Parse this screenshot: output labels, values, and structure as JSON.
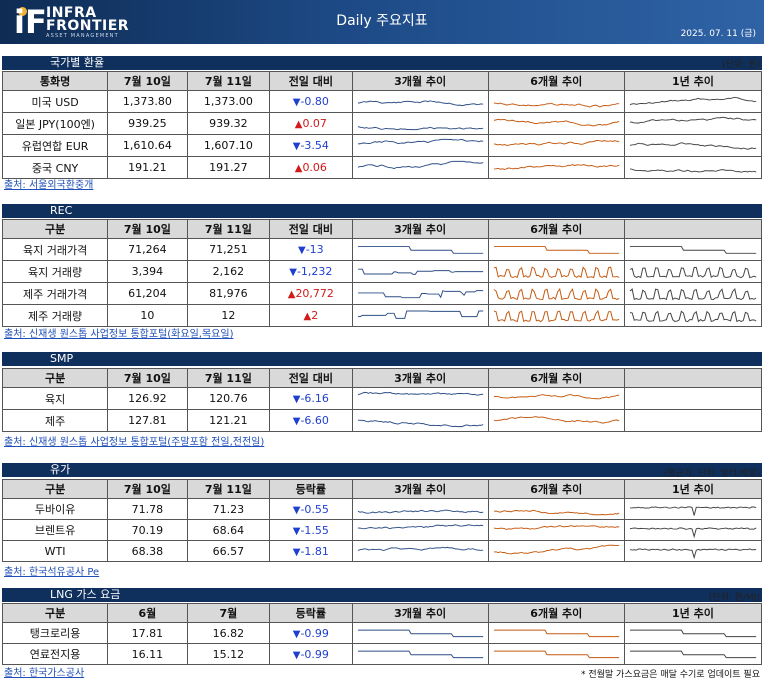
{
  "header": {
    "logo_i": "iF",
    "logo_line1": "INFRA",
    "logo_line2": "FRONTIER",
    "logo_line3": "ASSET MANAGEMENT",
    "title": "Daily 주요지표",
    "date": "2025. 07. 11 (금)"
  },
  "fx": {
    "title": "국가별 환율",
    "unit": "(단위: 원)",
    "headers": [
      "통화명",
      "7월 10일",
      "7월 11일",
      "전일 대비",
      "3개월 추이",
      "6개월 추이",
      "1년 추이"
    ],
    "rows": [
      {
        "name": "미국 USD",
        "prev": "1,373.80",
        "curr": "1,373.00",
        "dir": "down",
        "change": "-0.80"
      },
      {
        "name": "일본 JPY(100엔)",
        "prev": "939.25",
        "curr": "939.32",
        "dir": "up",
        "change": "0.07"
      },
      {
        "name": "유럽연합 EUR",
        "prev": "1,610.64",
        "curr": "1,607.10",
        "dir": "down",
        "change": "-3.54"
      },
      {
        "name": "중국 CNY",
        "prev": "191.21",
        "curr": "191.27",
        "dir": "up",
        "change": "0.06"
      }
    ],
    "source": "출처: 서울외국환중개"
  },
  "rec": {
    "title": "REC",
    "headers": [
      "구분",
      "7월 10일",
      "7월 11일",
      "전일 대비",
      "3개월 추이",
      "6개월 추이",
      ""
    ],
    "rows": [
      {
        "name": "육지 거래가격",
        "prev": "71,264",
        "curr": "71,251",
        "dir": "down",
        "change": "-13"
      },
      {
        "name": "육지 거래량",
        "prev": "3,394",
        "curr": "2,162",
        "dir": "down",
        "change": "-1,232"
      },
      {
        "name": "제주 거래가격",
        "prev": "61,204",
        "curr": "81,976",
        "dir": "up",
        "change": "20,772"
      },
      {
        "name": "제주 거래량",
        "prev": "10",
        "curr": "12",
        "dir": "up",
        "change": "2"
      }
    ],
    "source": "출처: 신재생 원스톱 사업정보 통합포털(화요일,목요일)"
  },
  "smp": {
    "title": "SMP",
    "headers": [
      "구분",
      "7월 10일",
      "7월 11일",
      "전일 대비",
      "3개월 추이",
      "6개월 추이",
      ""
    ],
    "rows": [
      {
        "name": "육지",
        "prev": "126.92",
        "curr": "120.76",
        "dir": "down",
        "change": "-6.16"
      },
      {
        "name": "제주",
        "prev": "127.81",
        "curr": "121.21",
        "dir": "down",
        "change": "-6.60"
      }
    ],
    "source": "출처: 신재생 원스톱 사업정보 통합포털(주말포함 전일,전전일)"
  },
  "oil": {
    "title": "유가",
    "unit": "(평균가, 단위: 달러/배럴)",
    "headers": [
      "구분",
      "7월 10일",
      "7월 11일",
      "등락률",
      "3개월 추이",
      "6개월 추이",
      "1년 추이"
    ],
    "rows": [
      {
        "name": "두바이유",
        "prev": "71.78",
        "curr": "71.23",
        "dir": "down",
        "change": "-0.55"
      },
      {
        "name": "브렌트유",
        "prev": "70.19",
        "curr": "68.64",
        "dir": "down",
        "change": "-1.55"
      },
      {
        "name": "WTI",
        "prev": "68.38",
        "curr": "66.57",
        "dir": "down",
        "change": "-1.81"
      }
    ],
    "source": "출처: 한국석유공사 Pe"
  },
  "lng": {
    "title": "LNG 가스 요금",
    "unit": "(단위: 원/MJ)",
    "headers": [
      "구분",
      "6월",
      "7월",
      "등락률",
      "3개월 추이",
      "6개월 추이",
      "1년 추이"
    ],
    "rows": [
      {
        "name": "탱크로리용",
        "prev": "17.81",
        "curr": "16.82",
        "dir": "down",
        "change": "-0.99"
      },
      {
        "name": "연료전지용",
        "prev": "16.11",
        "curr": "15.12",
        "dir": "down",
        "change": "-0.99"
      }
    ],
    "source": "출처: 한국가스공사",
    "note": "* 전월말 가스요금은 매달 수기로 업데이트 필요"
  },
  "colors": {
    "blue_line": "#2e4f86",
    "orange_line": "#c55a11",
    "black_line": "#444444",
    "header_bar": "#0f2f5c"
  }
}
